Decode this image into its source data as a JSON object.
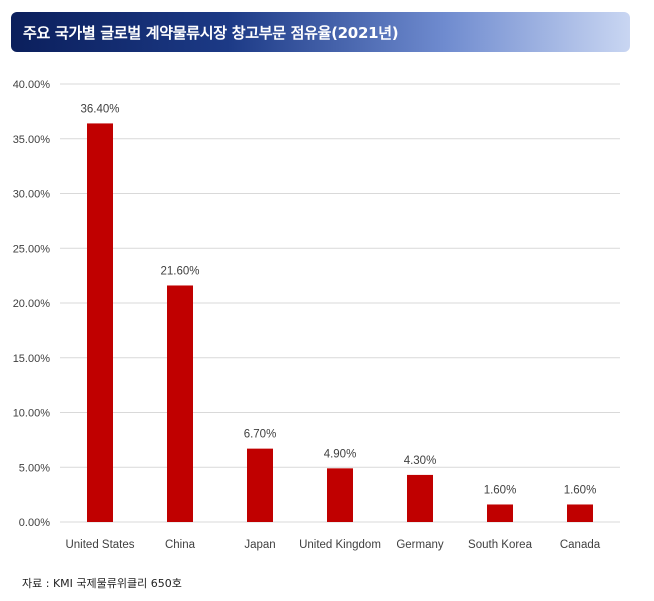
{
  "header": {
    "title": "주요 국가별 글로벌 계약물류시장 창고부문 점유율(2021년)"
  },
  "source": "자료 : KMI 국제물류위클리 650호",
  "colors": {
    "bar": "#c00000",
    "grid": "#d9d9d9",
    "title_bg_start": "#0b1f5c",
    "title_bg_end": "#c9d6f2"
  },
  "chart_data": {
    "type": "bar",
    "title": "주요 국가별 글로벌 계약물류시장 창고부문 점유율(2021년)",
    "xlabel": "",
    "ylabel": "",
    "categories": [
      "United States",
      "China",
      "Japan",
      "United Kingdom",
      "Germany",
      "South Korea",
      "Canada"
    ],
    "values": [
      36.4,
      21.6,
      6.7,
      4.9,
      4.3,
      1.6,
      1.6
    ],
    "value_labels": [
      "36.40%",
      "21.60%",
      "6.70%",
      "4.90%",
      "4.30%",
      "1.60%",
      "1.60%"
    ],
    "ylim": [
      0,
      40
    ],
    "yticks": [
      0,
      5,
      10,
      15,
      20,
      25,
      30,
      35,
      40
    ],
    "ytick_labels": [
      "0.00%",
      "5.00%",
      "10.00%",
      "15.00%",
      "20.00%",
      "25.00%",
      "30.00%",
      "35.00%",
      "40.00%"
    ],
    "grid": true,
    "legend": "none"
  }
}
